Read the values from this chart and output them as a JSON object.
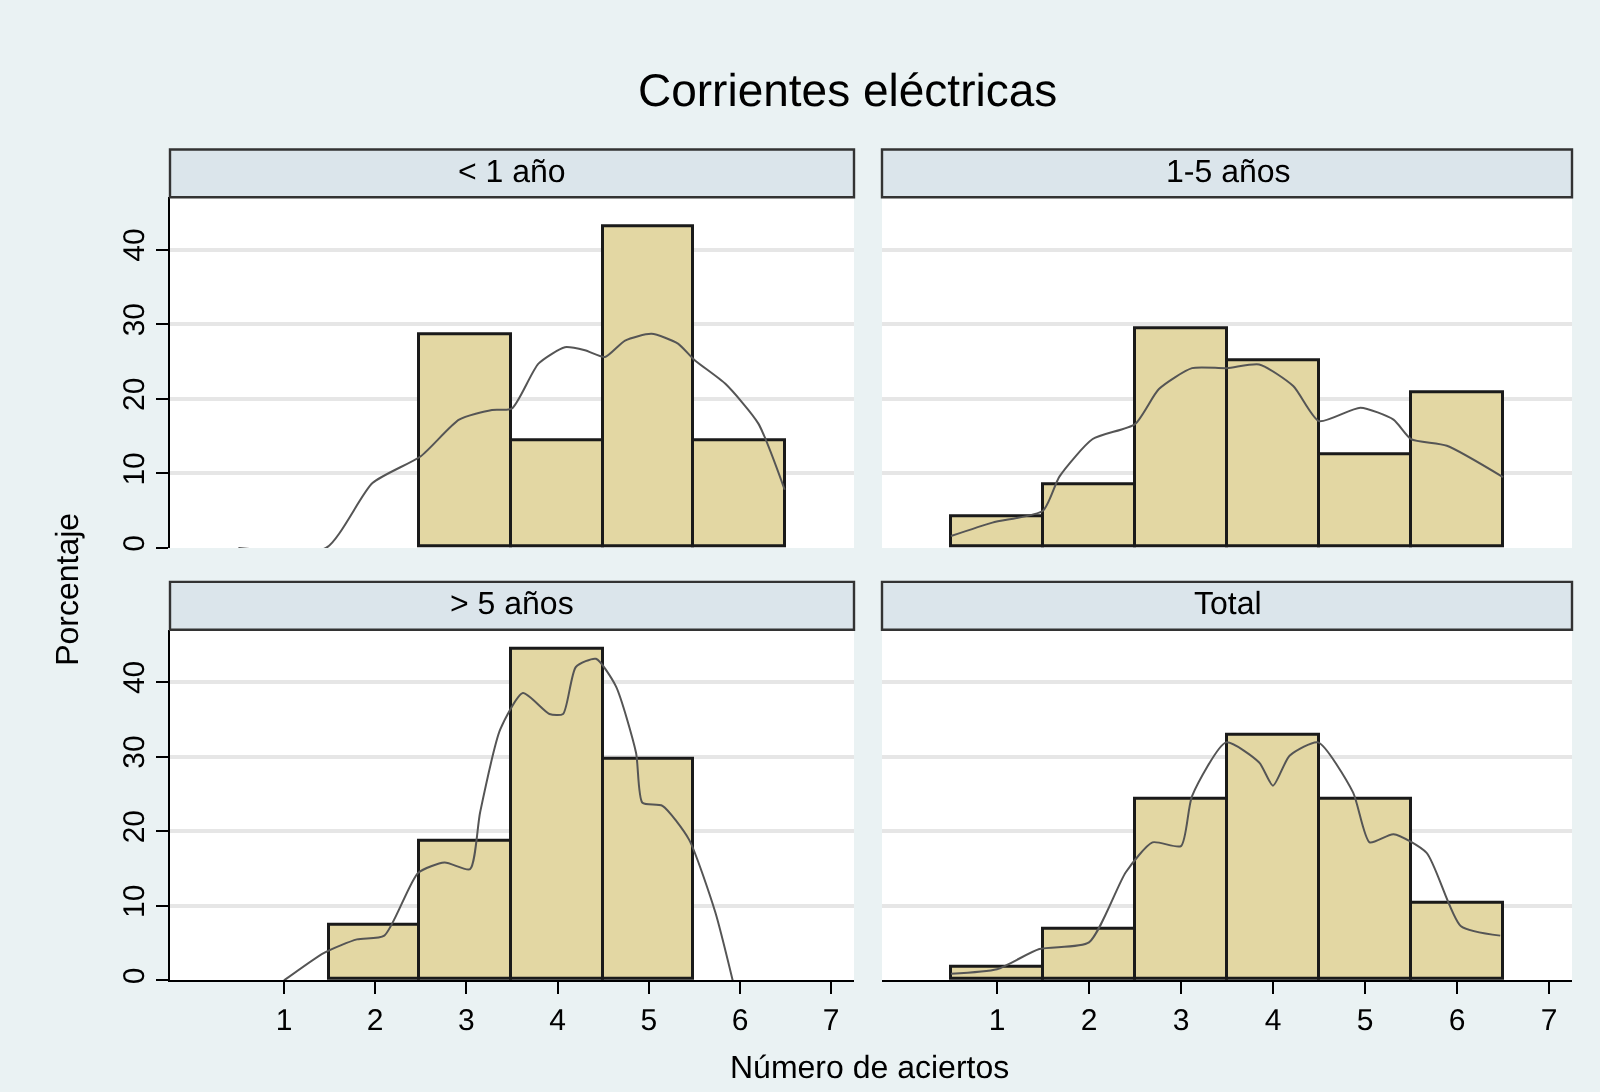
{
  "chart_data": [
    {
      "type": "histogram",
      "title": "< 1 año",
      "annotations": [
        "Corrientes eléctricas"
      ],
      "bins": [
        2.5,
        3.5,
        4.5,
        5.5,
        6.5
      ],
      "xlim": [
        -0.25,
        7.25
      ],
      "xticks": [
        1,
        2,
        3,
        4,
        5,
        6,
        7
      ],
      "ylim": [
        0,
        47
      ],
      "yticks": [
        0,
        10,
        20,
        30,
        40
      ],
      "grid": "y",
      "tick_labels": "y",
      "series": [
        {
          "color": "#e3d7a3",
          "values": [
            28.6,
            14.3,
            42.9,
            14.3
          ]
        },
        {
          "type": "line",
          "color": "#555555",
          "x": [
            0.5,
            1.46,
            1.97,
            2.5,
            2.92,
            3.28,
            3.5,
            3.79,
            4.08,
            4.3,
            4.52,
            4.74,
            5.03,
            5.32,
            5.5,
            5.84,
            6.2,
            6.49
          ],
          "values": [
            0,
            0,
            8.7,
            12.3,
            17.2,
            18.5,
            18.7,
            24.7,
            26.9,
            26.5,
            25.6,
            27.8,
            28.7,
            27.4,
            25.2,
            22,
            16.7,
            7.8
          ]
        }
      ]
    },
    {
      "type": "histogram",
      "title": "1-5 años",
      "bins": [
        0.5,
        1.5,
        2.5,
        3.5,
        4.5,
        5.5,
        6.5
      ],
      "xlim": [
        -0.25,
        7.25
      ],
      "xticks": [
        1,
        2,
        3,
        4,
        5,
        6,
        7
      ],
      "ylim": [
        0,
        47
      ],
      "yticks": [
        0,
        10,
        20,
        30,
        40
      ],
      "grid": "y",
      "tick_labels": false,
      "series": [
        {
          "color": "#e3d7a3",
          "values": [
            4.2,
            8.3,
            29.2,
            25,
            12.5,
            20.8
          ]
        },
        {
          "type": "line",
          "color": "#555555",
          "x": [
            0.5,
            0.95,
            1.5,
            1.68,
            2.04,
            2.5,
            2.76,
            3.12,
            3.5,
            3.85,
            4.22,
            4.5,
            4.95,
            5.31,
            5.5,
            5.89,
            6.5
          ],
          "values": [
            1.6,
            3.4,
            5.0,
            9.6,
            14.6,
            16.6,
            21.3,
            24.1,
            24.1,
            24.6,
            21.7,
            17,
            18.8,
            17.2,
            14.6,
            13.7,
            9.5
          ]
        }
      ]
    },
    {
      "type": "histogram",
      "title": "> 5 años",
      "ylabel": "Porcentaje",
      "bins": [
        1.5,
        2.5,
        3.5,
        4.5,
        5.5
      ],
      "xlim": [
        -0.25,
        7.25
      ],
      "xticks": [
        1,
        2,
        3,
        4,
        5,
        6,
        7
      ],
      "ylim": [
        0,
        47
      ],
      "yticks": [
        0,
        10,
        20,
        30,
        40
      ],
      "grid": "y",
      "series": [
        {
          "color": "#e3d7a3",
          "values": [
            7.4,
            18.5,
            44.4,
            29.6
          ]
        },
        {
          "type": "line",
          "color": "#555555",
          "x": [
            1.0,
            1.44,
            1.8,
            2.1,
            2.47,
            2.76,
            3.04,
            3.15,
            3.37,
            3.62,
            3.91,
            4.06,
            4.2,
            4.42,
            4.64,
            4.86,
            4.93,
            5.15,
            5.44,
            5.73,
            5.92
          ],
          "values": [
            0,
            3.7,
            5.5,
            6,
            14.4,
            15.8,
            14.9,
            22.5,
            33.6,
            38.5,
            35.7,
            35.7,
            42,
            43.1,
            39.4,
            30.5,
            23.8,
            23.4,
            18.9,
            9.1,
            0
          ]
        }
      ]
    },
    {
      "type": "histogram",
      "title": "Total",
      "xlabel": "Número de aciertos",
      "bins": [
        0.5,
        1.5,
        2.5,
        3.5,
        4.5,
        5.5,
        6.5
      ],
      "xlim": [
        -0.25,
        7.25
      ],
      "xticks": [
        1,
        2,
        3,
        4,
        5,
        6,
        7
      ],
      "ylim": [
        0,
        47
      ],
      "yticks": [
        0,
        10,
        20,
        30,
        40
      ],
      "grid": "y",
      "tick_labels": "x",
      "series": [
        {
          "color": "#e3d7a3",
          "values": [
            1.7,
            6.9,
            24.1,
            32.8,
            24.1,
            10.3
          ]
        },
        {
          "type": "line",
          "color": "#555555",
          "x": [
            0.5,
            1,
            1.46,
            2,
            2.4,
            2.69,
            3,
            3.12,
            3.49,
            3.85,
            4,
            4.18,
            4.49,
            4.87,
            5.05,
            5.31,
            5.67,
            6.04,
            6.47
          ],
          "values": [
            0.9,
            1.5,
            4.2,
            5.1,
            14.5,
            18.5,
            18,
            24.7,
            31.9,
            29.2,
            26.1,
            30.1,
            31.9,
            25.2,
            18.5,
            19.6,
            17.1,
            7.3,
            6
          ]
        }
      ]
    }
  ]
}
